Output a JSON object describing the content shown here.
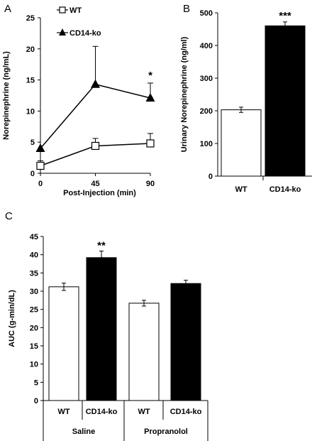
{
  "chart_data": [
    {
      "panel": "A",
      "type": "line",
      "xlabel": "Post-Injection (min)",
      "ylabel": "Norepinephrine (ng/mL)",
      "ylim": [
        0,
        25
      ],
      "yticks": [
        0,
        5,
        10,
        15,
        20,
        25
      ],
      "x": [
        0,
        45,
        90
      ],
      "xticks": [
        "0",
        "45",
        "90"
      ],
      "legend_position": "top-left",
      "series": [
        {
          "name": "WT",
          "marker": "open-square",
          "values": [
            1.2,
            4.4,
            4.8
          ],
          "errors": [
            0.8,
            1.2,
            1.6
          ]
        },
        {
          "name": "CD14-ko",
          "marker": "filled-triangle",
          "values": [
            4.0,
            14.3,
            12.1
          ],
          "errors": [
            0,
            6.1,
            2.4
          ]
        }
      ],
      "annotations": [
        {
          "text": "*",
          "x": 90
        }
      ]
    },
    {
      "panel": "B",
      "type": "bar",
      "ylabel": "Urinary Norepinephrine (ng/ml)",
      "ylim": [
        0,
        500
      ],
      "yticks": [
        0,
        100,
        200,
        300,
        400,
        500
      ],
      "categories": [
        "WT",
        "CD14-ko"
      ],
      "values": [
        203,
        460
      ],
      "errors": [
        8,
        12
      ],
      "colors": [
        "#ffffff",
        "#000000"
      ],
      "annotations": [
        {
          "text": "***",
          "category": "CD14-ko"
        }
      ]
    },
    {
      "panel": "C",
      "type": "bar",
      "ylabel": "AUC (g-min/dL)",
      "ylim": [
        0,
        45
      ],
      "yticks": [
        0,
        5,
        10,
        15,
        20,
        25,
        30,
        35,
        40,
        45
      ],
      "categories": [
        "WT",
        "CD14-ko",
        "WT",
        "CD14-ko"
      ],
      "groups": [
        {
          "label": "Saline",
          "members": [
            0,
            1
          ]
        },
        {
          "label": "Propranolol",
          "members": [
            2,
            3
          ]
        }
      ],
      "values": [
        31.2,
        39.2,
        26.7,
        32.1
      ],
      "errors": [
        1.0,
        1.8,
        0.8,
        0.9
      ],
      "colors": [
        "#ffffff",
        "#000000",
        "#ffffff",
        "#000000"
      ],
      "annotations": [
        {
          "text": "**",
          "category_index": 1
        }
      ]
    }
  ]
}
